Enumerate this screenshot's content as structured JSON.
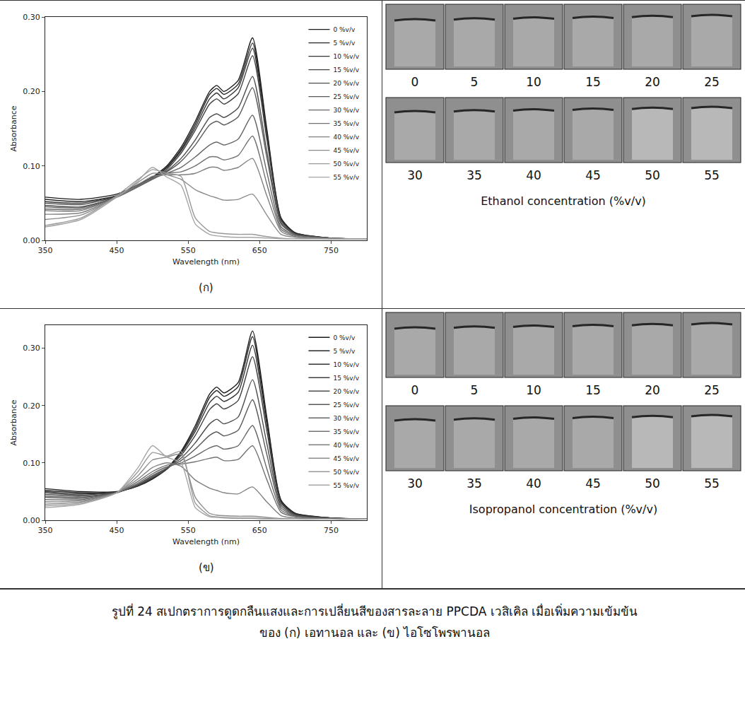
{
  "chart_data": [
    {
      "type": "line",
      "panel_label": "(ก)",
      "x_label": "Wavelength (nm)",
      "y_label": "Absorbance",
      "x": [
        350,
        400,
        450,
        480,
        500,
        520,
        540,
        560,
        580,
        590,
        600,
        620,
        640,
        660,
        680,
        700,
        750,
        800
      ],
      "xlim": [
        350,
        800
      ],
      "xticks": [
        350,
        450,
        550,
        650,
        750
      ],
      "ylim": [
        0,
        0.3
      ],
      "yticks": [
        {
          "value": 0,
          "label": "0.00"
        },
        {
          "value": 0.1,
          "label": "0.10"
        },
        {
          "value": 0.2,
          "label": "0.20"
        },
        {
          "value": 0.3,
          "label": "0.30"
        }
      ],
      "grid": false,
      "legend": "top right",
      "series": [
        {
          "name": "0 %v/v",
          "color": "#1a1a1a",
          "values": [
            0.058,
            0.055,
            0.062,
            0.075,
            0.085,
            0.1,
            0.125,
            0.16,
            0.2,
            0.208,
            0.2,
            0.215,
            0.272,
            0.15,
            0.03,
            0.01,
            0.003,
            0.002
          ]
        },
        {
          "name": "5 %v/v",
          "color": "#262626",
          "values": [
            0.055,
            0.052,
            0.06,
            0.074,
            0.084,
            0.098,
            0.122,
            0.156,
            0.196,
            0.204,
            0.196,
            0.21,
            0.265,
            0.146,
            0.029,
            0.01,
            0.003,
            0.002
          ]
        },
        {
          "name": "10 %v/v",
          "color": "#333333",
          "values": [
            0.052,
            0.05,
            0.06,
            0.074,
            0.084,
            0.097,
            0.12,
            0.152,
            0.19,
            0.198,
            0.19,
            0.205,
            0.258,
            0.142,
            0.028,
            0.009,
            0.003,
            0.002
          ]
        },
        {
          "name": "15 %v/v",
          "color": "#404040",
          "values": [
            0.05,
            0.048,
            0.059,
            0.073,
            0.083,
            0.095,
            0.117,
            0.148,
            0.183,
            0.19,
            0.183,
            0.197,
            0.248,
            0.136,
            0.027,
            0.009,
            0.003,
            0.002
          ]
        },
        {
          "name": "20 %v/v",
          "color": "#4d4d4d",
          "values": [
            0.047,
            0.045,
            0.058,
            0.073,
            0.083,
            0.093,
            0.11,
            0.135,
            0.165,
            0.17,
            0.165,
            0.178,
            0.22,
            0.12,
            0.024,
            0.008,
            0.003,
            0.002
          ]
        },
        {
          "name": "25 %v/v",
          "color": "#595959",
          "values": [
            0.045,
            0.044,
            0.058,
            0.072,
            0.082,
            0.092,
            0.106,
            0.128,
            0.155,
            0.16,
            0.155,
            0.166,
            0.205,
            0.112,
            0.022,
            0.008,
            0.003,
            0.002
          ]
        },
        {
          "name": "30 %v/v",
          "color": "#666666",
          "values": [
            0.042,
            0.042,
            0.058,
            0.072,
            0.083,
            0.09,
            0.098,
            0.112,
            0.128,
            0.132,
            0.128,
            0.136,
            0.168,
            0.092,
            0.018,
            0.007,
            0.003,
            0.002
          ]
        },
        {
          "name": "35 %v/v",
          "color": "#737373",
          "values": [
            0.04,
            0.04,
            0.058,
            0.073,
            0.084,
            0.09,
            0.092,
            0.1,
            0.112,
            0.112,
            0.108,
            0.114,
            0.14,
            0.076,
            0.015,
            0.006,
            0.002,
            0.002
          ]
        },
        {
          "name": "40 %v/v",
          "color": "#808080",
          "values": [
            0.035,
            0.037,
            0.058,
            0.075,
            0.086,
            0.088,
            0.088,
            0.09,
            0.098,
            0.098,
            0.094,
            0.098,
            0.11,
            0.06,
            0.012,
            0.005,
            0.002,
            0.002
          ]
        },
        {
          "name": "45 %v/v",
          "color": "#8c8c8c",
          "values": [
            0.028,
            0.034,
            0.058,
            0.078,
            0.09,
            0.088,
            0.082,
            0.068,
            0.06,
            0.057,
            0.054,
            0.055,
            0.062,
            0.034,
            0.008,
            0.004,
            0.002,
            0.002
          ]
        },
        {
          "name": "50 %v/v",
          "color": "#999999",
          "values": [
            0.02,
            0.03,
            0.06,
            0.082,
            0.095,
            0.09,
            0.086,
            0.03,
            0.012,
            0.01,
            0.009,
            0.008,
            0.008,
            0.005,
            0.003,
            0.002,
            0.002,
            0.002
          ]
        },
        {
          "name": "55 %v/v",
          "color": "#a6a6a6",
          "values": [
            0.018,
            0.028,
            0.058,
            0.08,
            0.098,
            0.085,
            0.074,
            0.022,
            0.008,
            0.006,
            0.005,
            0.004,
            0.004,
            0.003,
            0.002,
            0.002,
            0.002,
            0.002
          ]
        }
      ]
    },
    {
      "type": "line",
      "panel_label": "(ข)",
      "x_label": "Wavelength (nm)",
      "y_label": "Absorbance",
      "x": [
        350,
        400,
        450,
        480,
        500,
        520,
        540,
        560,
        580,
        590,
        600,
        620,
        640,
        660,
        680,
        700,
        750,
        800
      ],
      "xlim": [
        350,
        800
      ],
      "xticks": [
        350,
        450,
        550,
        650,
        750
      ],
      "ylim": [
        0,
        0.34
      ],
      "yticks": [
        {
          "value": 0,
          "label": "0.00"
        },
        {
          "value": 0.1,
          "label": "0.10"
        },
        {
          "value": 0.2,
          "label": "0.20"
        },
        {
          "value": 0.3,
          "label": "0.30"
        }
      ],
      "grid": false,
      "legend": "top right",
      "series": [
        {
          "name": "0 %v/v",
          "color": "#1a1a1a",
          "values": [
            0.055,
            0.05,
            0.05,
            0.06,
            0.072,
            0.09,
            0.12,
            0.165,
            0.22,
            0.232,
            0.222,
            0.24,
            0.33,
            0.18,
            0.035,
            0.012,
            0.004,
            0.002
          ]
        },
        {
          "name": "5 %v/v",
          "color": "#262626",
          "values": [
            0.052,
            0.048,
            0.049,
            0.06,
            0.072,
            0.089,
            0.118,
            0.16,
            0.214,
            0.226,
            0.216,
            0.233,
            0.32,
            0.175,
            0.034,
            0.012,
            0.004,
            0.002
          ]
        },
        {
          "name": "10 %v/v",
          "color": "#333333",
          "values": [
            0.05,
            0.046,
            0.049,
            0.06,
            0.073,
            0.089,
            0.116,
            0.155,
            0.205,
            0.216,
            0.207,
            0.223,
            0.305,
            0.167,
            0.032,
            0.011,
            0.004,
            0.002
          ]
        },
        {
          "name": "15 %v/v",
          "color": "#404040",
          "values": [
            0.048,
            0.044,
            0.049,
            0.061,
            0.074,
            0.089,
            0.113,
            0.148,
            0.193,
            0.203,
            0.194,
            0.209,
            0.285,
            0.156,
            0.03,
            0.01,
            0.004,
            0.002
          ]
        },
        {
          "name": "20 %v/v",
          "color": "#4d4d4d",
          "values": [
            0.045,
            0.042,
            0.048,
            0.062,
            0.076,
            0.09,
            0.108,
            0.135,
            0.168,
            0.176,
            0.168,
            0.18,
            0.245,
            0.134,
            0.026,
            0.009,
            0.003,
            0.002
          ]
        },
        {
          "name": "25 %v/v",
          "color": "#595959",
          "values": [
            0.042,
            0.04,
            0.048,
            0.063,
            0.078,
            0.091,
            0.104,
            0.124,
            0.148,
            0.154,
            0.147,
            0.157,
            0.21,
            0.115,
            0.022,
            0.008,
            0.003,
            0.002
          ]
        },
        {
          "name": "30 %v/v",
          "color": "#666666",
          "values": [
            0.04,
            0.038,
            0.048,
            0.065,
            0.081,
            0.093,
            0.1,
            0.112,
            0.126,
            0.13,
            0.124,
            0.13,
            0.165,
            0.09,
            0.018,
            0.007,
            0.003,
            0.002
          ]
        },
        {
          "name": "35 %v/v",
          "color": "#737373",
          "values": [
            0.036,
            0.036,
            0.048,
            0.068,
            0.085,
            0.096,
            0.098,
            0.102,
            0.108,
            0.11,
            0.104,
            0.106,
            0.13,
            0.071,
            0.014,
            0.006,
            0.002,
            0.002
          ]
        },
        {
          "name": "40 %v/v",
          "color": "#808080",
          "values": [
            0.032,
            0.034,
            0.048,
            0.072,
            0.092,
            0.1,
            0.094,
            0.07,
            0.056,
            0.052,
            0.048,
            0.046,
            0.058,
            0.032,
            0.008,
            0.004,
            0.002,
            0.002
          ]
        },
        {
          "name": "45 %v/v",
          "color": "#8c8c8c",
          "values": [
            0.028,
            0.032,
            0.048,
            0.078,
            0.105,
            0.11,
            0.115,
            0.04,
            0.012,
            0.009,
            0.008,
            0.007,
            0.007,
            0.005,
            0.003,
            0.002,
            0.002,
            0.002
          ]
        },
        {
          "name": "50 %v/v",
          "color": "#999999",
          "values": [
            0.025,
            0.03,
            0.048,
            0.085,
            0.118,
            0.112,
            0.12,
            0.03,
            0.008,
            0.006,
            0.005,
            0.004,
            0.004,
            0.003,
            0.002,
            0.002,
            0.002,
            0.002
          ]
        },
        {
          "name": "55 %v/v",
          "color": "#a6a6a6",
          "values": [
            0.022,
            0.028,
            0.048,
            0.092,
            0.13,
            0.11,
            0.1,
            0.022,
            0.006,
            0.005,
            0.004,
            0.003,
            0.003,
            0.002,
            0.002,
            0.002,
            0.002,
            0.002
          ]
        }
      ]
    }
  ],
  "photos": [
    {
      "x_label": "Ethanol concentration (%v/v)",
      "labels": [
        0,
        5,
        10,
        15,
        20,
        25,
        30,
        35,
        40,
        45,
        50,
        55
      ]
    },
    {
      "x_label": "Isopropanol concentration (%v/v)",
      "labels": [
        0,
        5,
        10,
        15,
        20,
        25,
        30,
        35,
        40,
        45,
        50,
        55
      ]
    }
  ],
  "caption": "รูปที่ 24 สเปกตราการดูดกลืนแสงและการเปลี่ยนสีของสารละลาย PPCDA เวสิเคิล เมื่อเพิ่มความเข้มข้นของ (ก) เอทานอล และ (ข) ไอโซโพรพานอล"
}
